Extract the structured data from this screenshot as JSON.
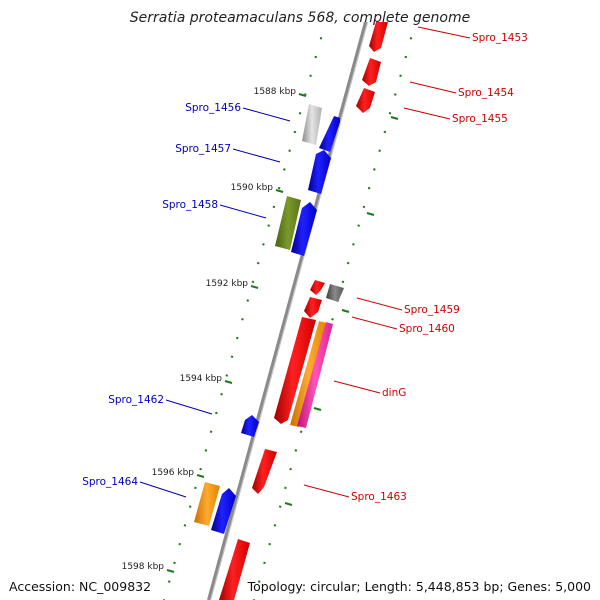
{
  "title": "Serratia proteamaculans 568, complete genome",
  "footer": {
    "accession": "Accession: NC_009832",
    "topology": "Topology: circular; Length: 5,448,853 bp; Genes: 5,000"
  },
  "colors": {
    "backbone": "#808080",
    "tick": "#1a7a1a",
    "forward_label": "#cc0000",
    "reverse_label": "#0000bb"
  },
  "ticks": [
    {
      "label": "1588 kbp"
    },
    {
      "label": "1590 kbp"
    },
    {
      "label": "1592 kbp"
    },
    {
      "label": "1594 kbp"
    },
    {
      "label": "1596 kbp"
    },
    {
      "label": "1598 kbp"
    }
  ],
  "genes": [
    {
      "name": "Spro_1453",
      "strand": "forward",
      "color": "#ff0000"
    },
    {
      "name": "Spro_1454",
      "strand": "forward",
      "color": "#ff0000"
    },
    {
      "name": "Spro_1455",
      "strand": "forward",
      "color": "#ff0000"
    },
    {
      "name": "Spro_1456",
      "strand": "reverse",
      "color": "#0000ff"
    },
    {
      "name": "Spro_1457",
      "strand": "reverse",
      "color": "#0000ff"
    },
    {
      "name": "Spro_1458",
      "strand": "reverse",
      "color": "#0000ff"
    },
    {
      "name": "Spro_1459",
      "strand": "forward",
      "color": "#ff0000"
    },
    {
      "name": "Spro_1460",
      "strand": "forward",
      "color": "#ff0000"
    },
    {
      "name": "dinG",
      "strand": "forward",
      "color": "#ff1493"
    },
    {
      "name": "Spro_1462",
      "strand": "reverse",
      "color": "#0000ff"
    },
    {
      "name": "Spro_1463",
      "strand": "forward",
      "color": "#ff0000"
    },
    {
      "name": "Spro_1464",
      "strand": "reverse",
      "color": "#0000ff"
    }
  ]
}
